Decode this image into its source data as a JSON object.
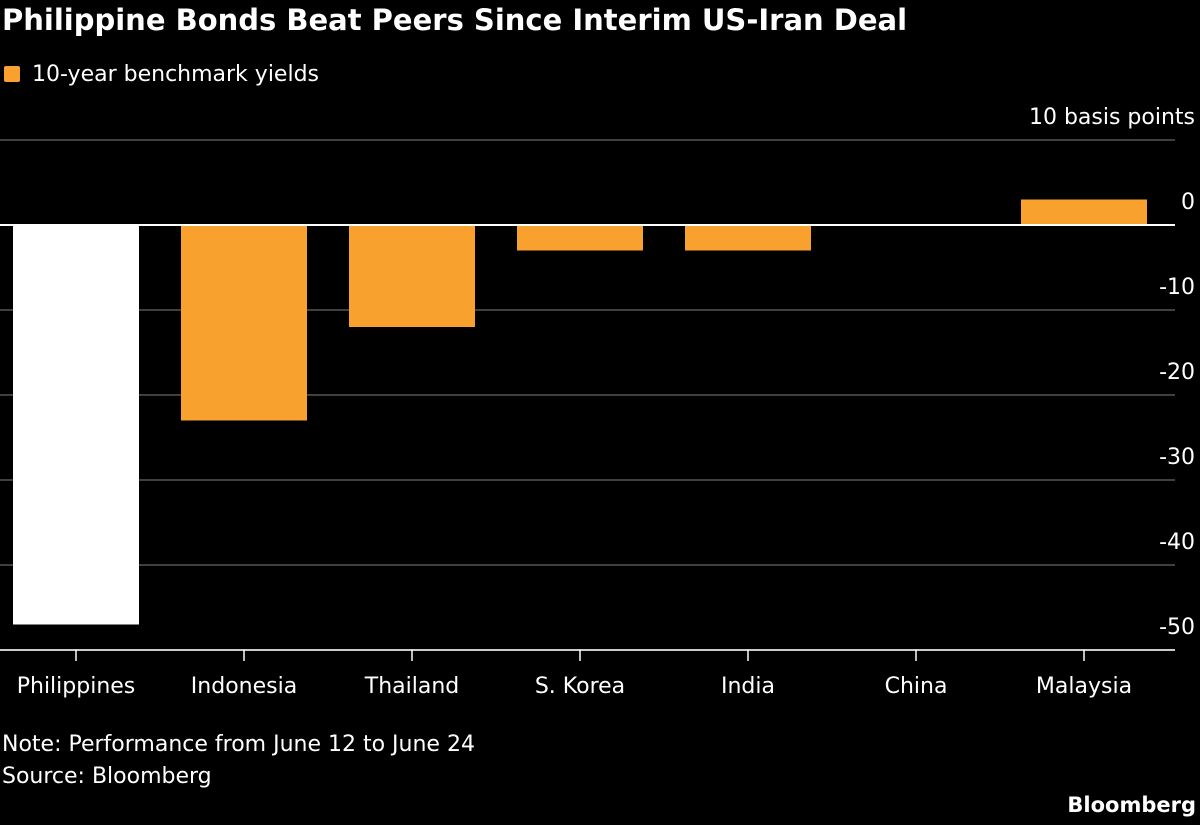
{
  "chart_data": {
    "type": "bar",
    "title": "Philippine Bonds Beat Peers Since Interim US-Iran Deal",
    "categories": [
      "Philippines",
      "Indonesia",
      "Thailand",
      "S. Korea",
      "India",
      "China",
      "Malaysia"
    ],
    "series": [
      {
        "name": "10-year benchmark yields",
        "color": "#f9a12e",
        "point_colors": [
          "#ffffff",
          "#f9a12e",
          "#f9a12e",
          "#f9a12e",
          "#f9a12e",
          "#f9a12e",
          "#f9a12e"
        ],
        "values": [
          -47,
          -23,
          -12,
          -3,
          -3,
          0,
          3
        ]
      }
    ],
    "ylim": [
      -50,
      10
    ],
    "yticks": [
      -50,
      -40,
      -30,
      -20,
      -10,
      0,
      {
        "value": 10,
        "label": "10 basis points"
      }
    ],
    "grid": true,
    "note": "Note: Performance from June 12 to June 24",
    "source": "Source: Bloomberg",
    "brand": "Bloomberg"
  }
}
